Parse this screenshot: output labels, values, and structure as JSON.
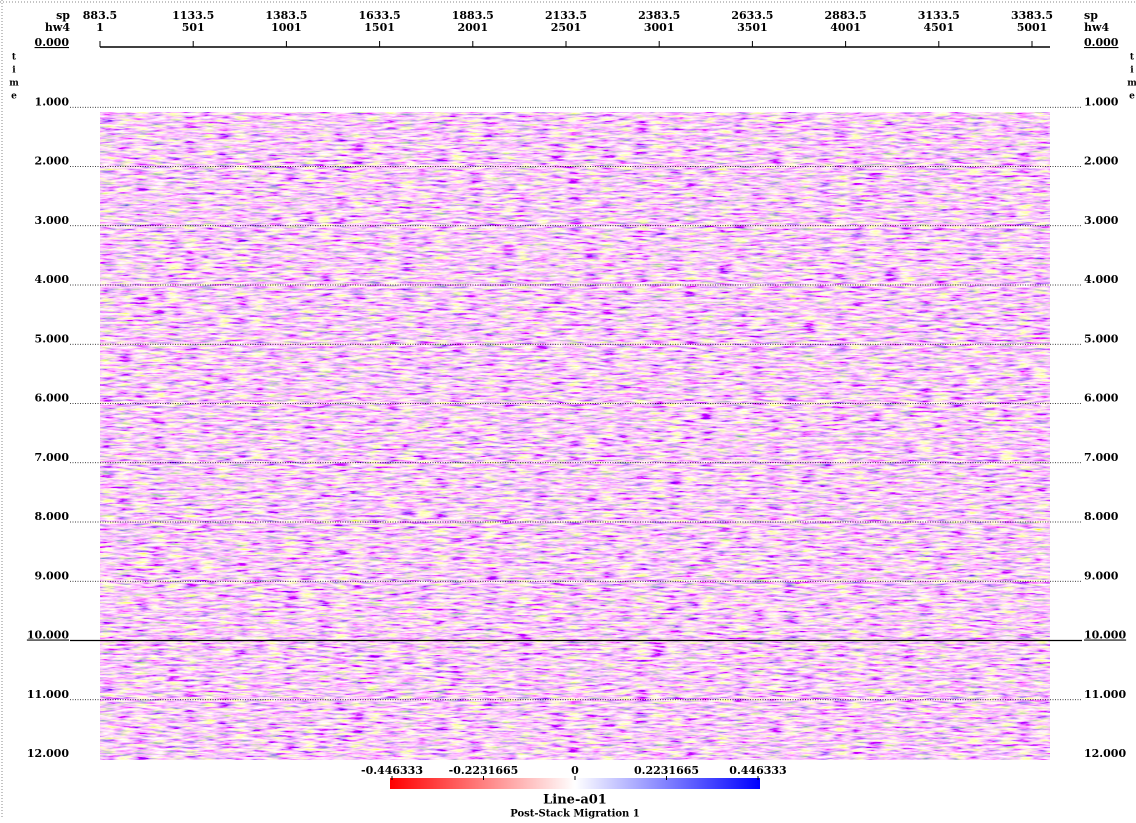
{
  "top_axis": {
    "rows": [
      {
        "label": "sp",
        "ticks": [
          "883.5",
          "1133.5",
          "1383.5",
          "1633.5",
          "1883.5",
          "2133.5",
          "2383.5",
          "2633.5",
          "2883.5",
          "3133.5",
          "3383.5"
        ]
      },
      {
        "label": "hw4",
        "ticks": [
          "1",
          "501",
          "1001",
          "1501",
          "2001",
          "2501",
          "3001",
          "3501",
          "4001",
          "4501",
          "5001"
        ]
      }
    ]
  },
  "y_axis": {
    "label": "time",
    "ticks": [
      "0.000",
      "1.000",
      "2.000",
      "3.000",
      "4.000",
      "5.000",
      "6.000",
      "7.000",
      "8.000",
      "9.000",
      "10.000",
      "11.000",
      "12.000"
    ]
  },
  "colorbar": {
    "ticks": [
      "-0.446333",
      "-0.2231665",
      "0",
      "0.2231665",
      "0.446333"
    ]
  },
  "title": "Line-a01",
  "subtitle": "Post-Stack Migration 1"
}
